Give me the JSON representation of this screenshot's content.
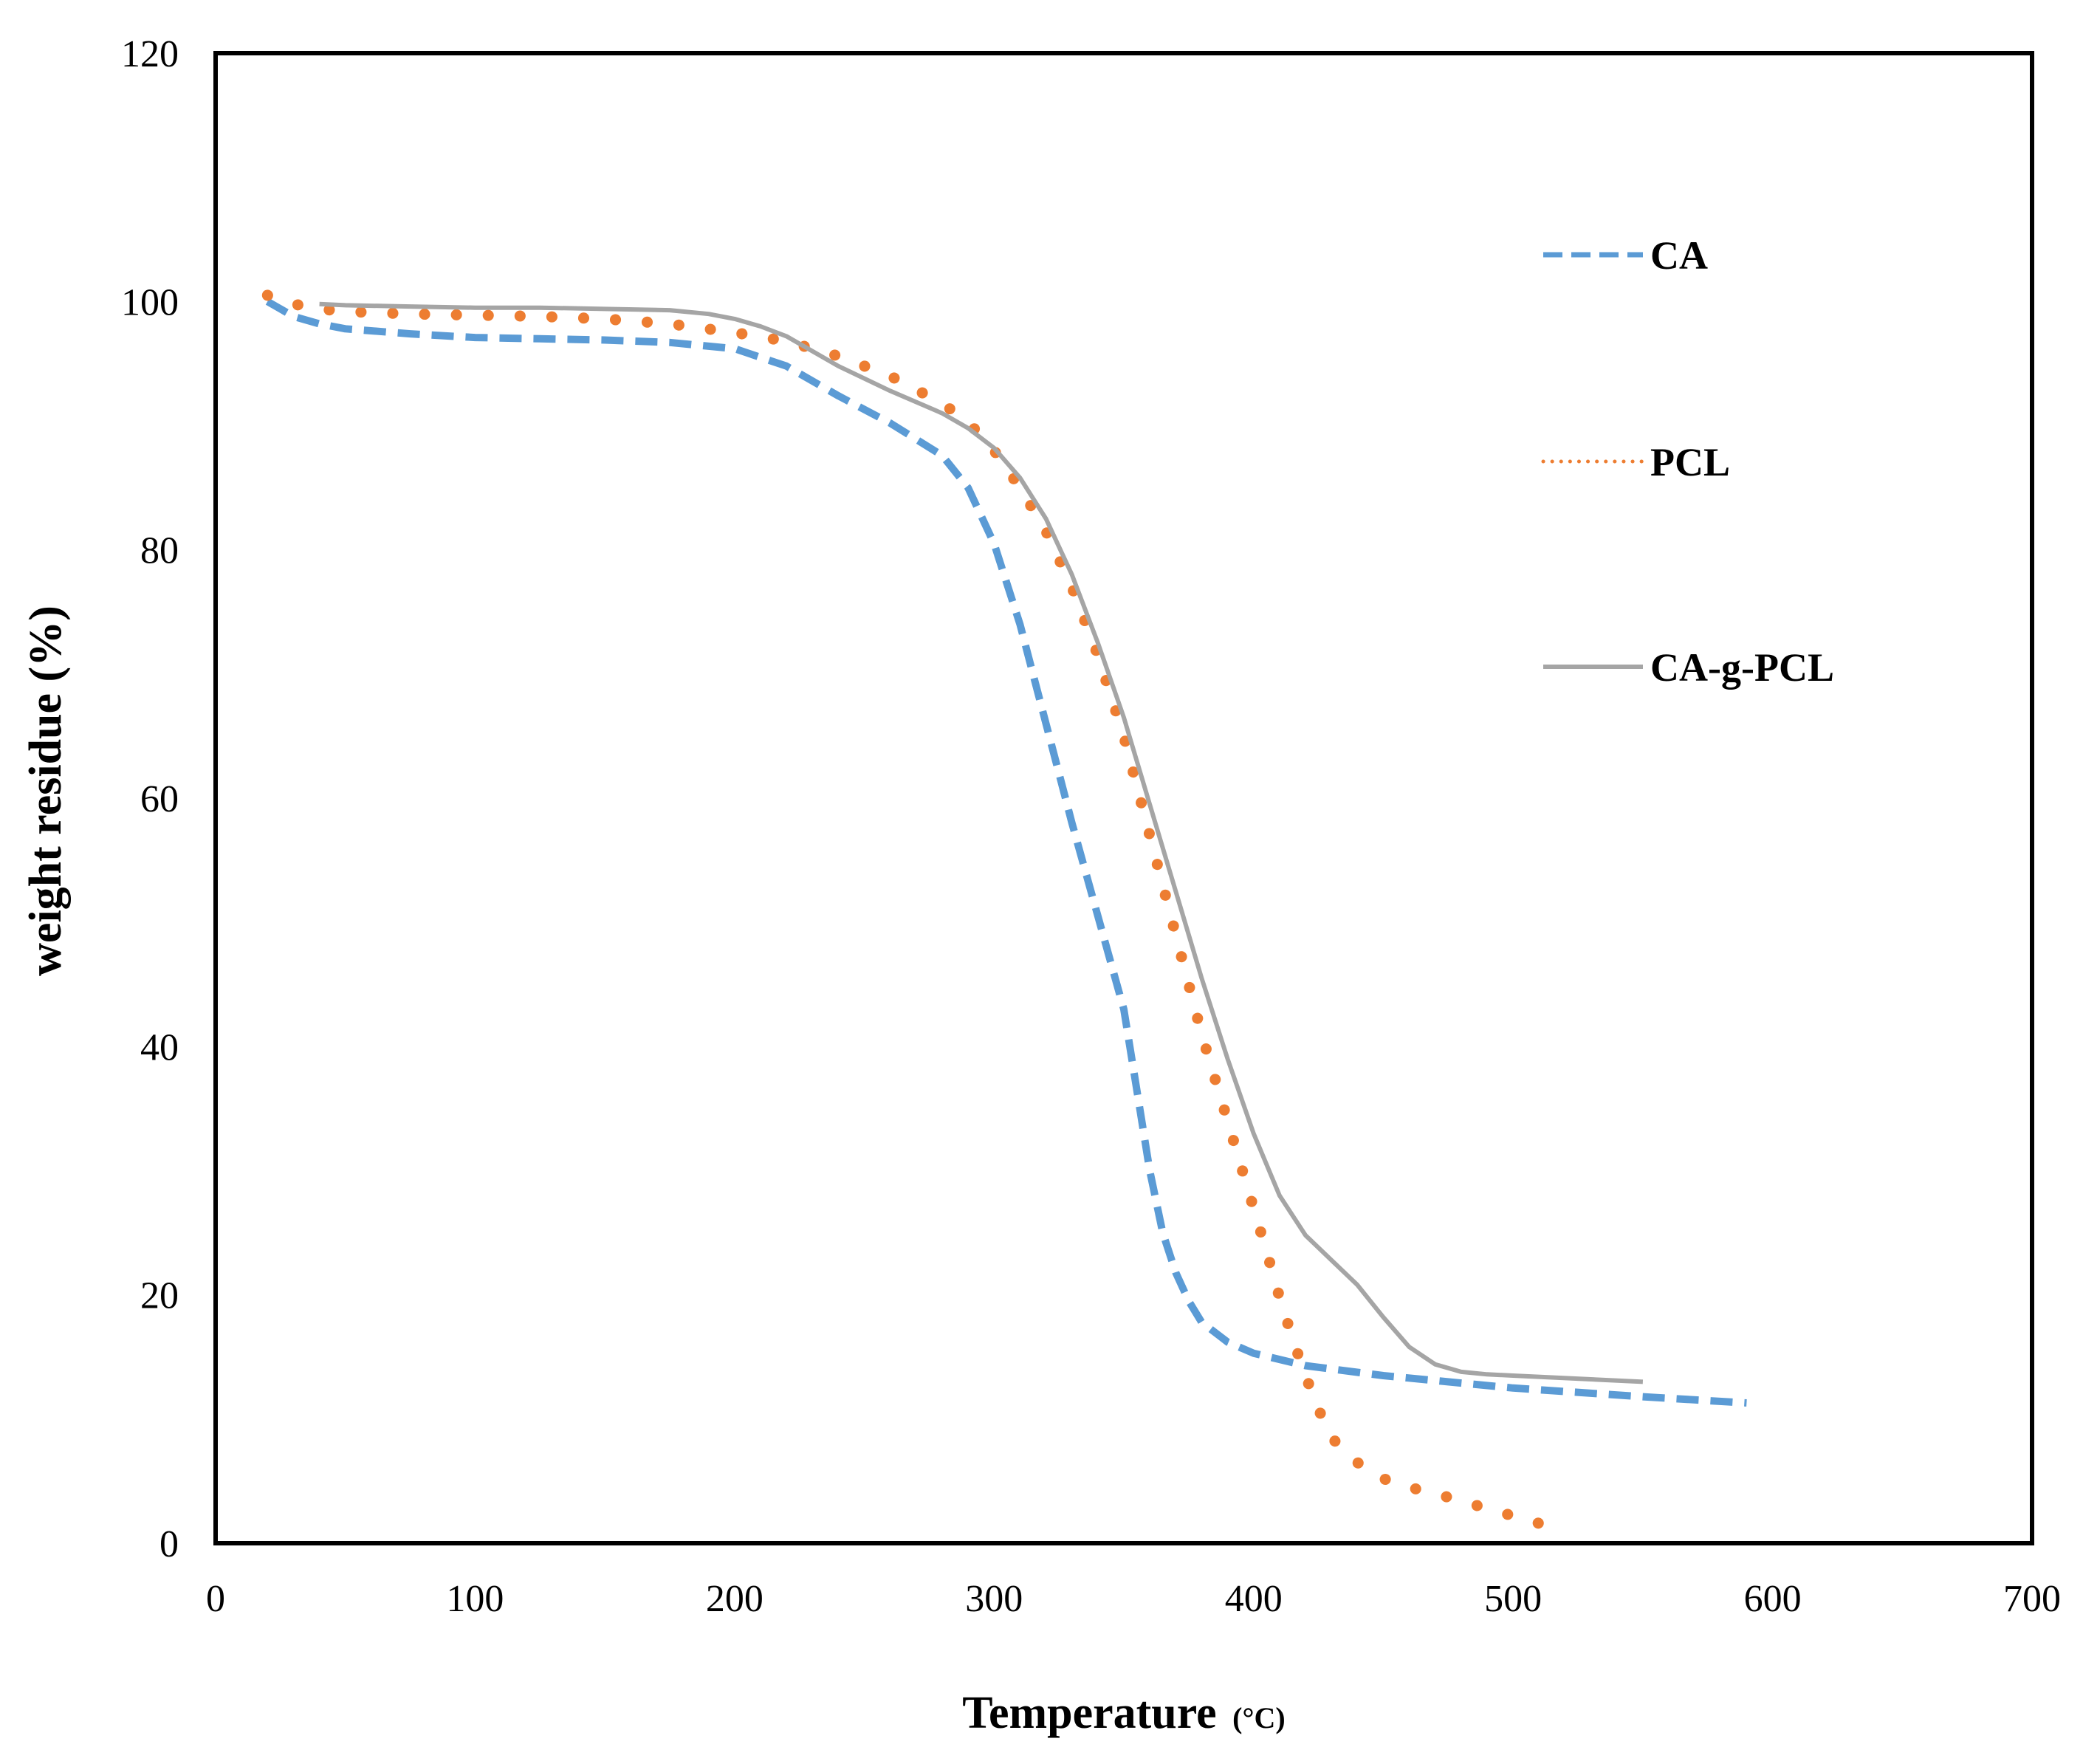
{
  "chart_data": {
    "type": "line",
    "title": "",
    "xlabel": "Temperature",
    "xlabel_unit": "(°C)",
    "ylabel": "weight residue (%)",
    "xlim": [
      0,
      700
    ],
    "ylim": [
      0,
      120
    ],
    "xticks": [
      0,
      100,
      200,
      300,
      400,
      500,
      600,
      700
    ],
    "yticks": [
      0,
      20,
      40,
      60,
      80,
      100,
      120
    ],
    "grid": false,
    "legend_position": "right",
    "series": [
      {
        "name": "CA",
        "style": "dashed",
        "color": "#5b9bd5",
        "x": [
          20,
          30,
          40,
          50,
          75,
          100,
          125,
          150,
          175,
          200,
          220,
          240,
          260,
          280,
          290,
          300,
          310,
          320,
          330,
          340,
          350,
          355,
          360,
          365,
          370,
          375,
          380,
          390,
          400,
          420,
          450,
          480,
          500,
          550,
          590
        ],
        "y": [
          100,
          98.8,
          98.2,
          97.8,
          97.4,
          97.1,
          97.0,
          96.9,
          96.7,
          96.2,
          94.8,
          92.4,
          90.2,
          87.6,
          85.0,
          80.5,
          74.0,
          66.0,
          58.0,
          50.5,
          43.0,
          36.5,
          30.0,
          25.0,
          21.8,
          19.5,
          17.8,
          16.2,
          15.3,
          14.3,
          13.5,
          12.9,
          12.5,
          11.8,
          11.3
        ]
      },
      {
        "name": "PCL",
        "style": "dotted",
        "color": "#ed7d31",
        "x": [
          20,
          30,
          40,
          50,
          75,
          100,
          125,
          150,
          175,
          200,
          220,
          240,
          260,
          280,
          290,
          300,
          310,
          320,
          330,
          340,
          350,
          360,
          370,
          380,
          390,
          395,
          400,
          405,
          410,
          415,
          420,
          425,
          430,
          440,
          450,
          460,
          470,
          480,
          490,
          500,
          510
        ],
        "y": [
          100.5,
          99.8,
          99.4,
          99.2,
          99.0,
          98.9,
          98.8,
          98.6,
          98.2,
          97.5,
          96.8,
          95.6,
          94.0,
          91.8,
          90.3,
          88.0,
          85.0,
          81.5,
          77.0,
          71.5,
          65.0,
          57.0,
          49.0,
          41.0,
          34.0,
          30.5,
          27.0,
          23.5,
          19.8,
          16.5,
          13.5,
          10.8,
          8.5,
          6.5,
          5.2,
          4.5,
          4.0,
          3.4,
          2.8,
          2.2,
          1.6
        ]
      },
      {
        "name": "CA-g-PCL",
        "style": "solid",
        "color": "#a5a5a5",
        "x": [
          40,
          50,
          75,
          100,
          125,
          150,
          175,
          190,
          200,
          210,
          220,
          230,
          240,
          260,
          280,
          290,
          300,
          310,
          320,
          330,
          340,
          350,
          360,
          370,
          380,
          390,
          400,
          410,
          420,
          430,
          440,
          450,
          460,
          470,
          480,
          490,
          500,
          550
        ],
        "y": [
          99.8,
          99.7,
          99.6,
          99.5,
          99.5,
          99.4,
          99.3,
          99.0,
          98.6,
          98.0,
          97.2,
          96.0,
          94.8,
          92.8,
          91.0,
          89.8,
          88.2,
          85.8,
          82.5,
          78.0,
          72.5,
          66.5,
          59.5,
          52.5,
          45.5,
          39.0,
          33.0,
          28.0,
          24.8,
          22.8,
          20.8,
          18.2,
          15.8,
          14.4,
          13.8,
          13.6,
          13.5,
          13.0
        ]
      }
    ]
  }
}
